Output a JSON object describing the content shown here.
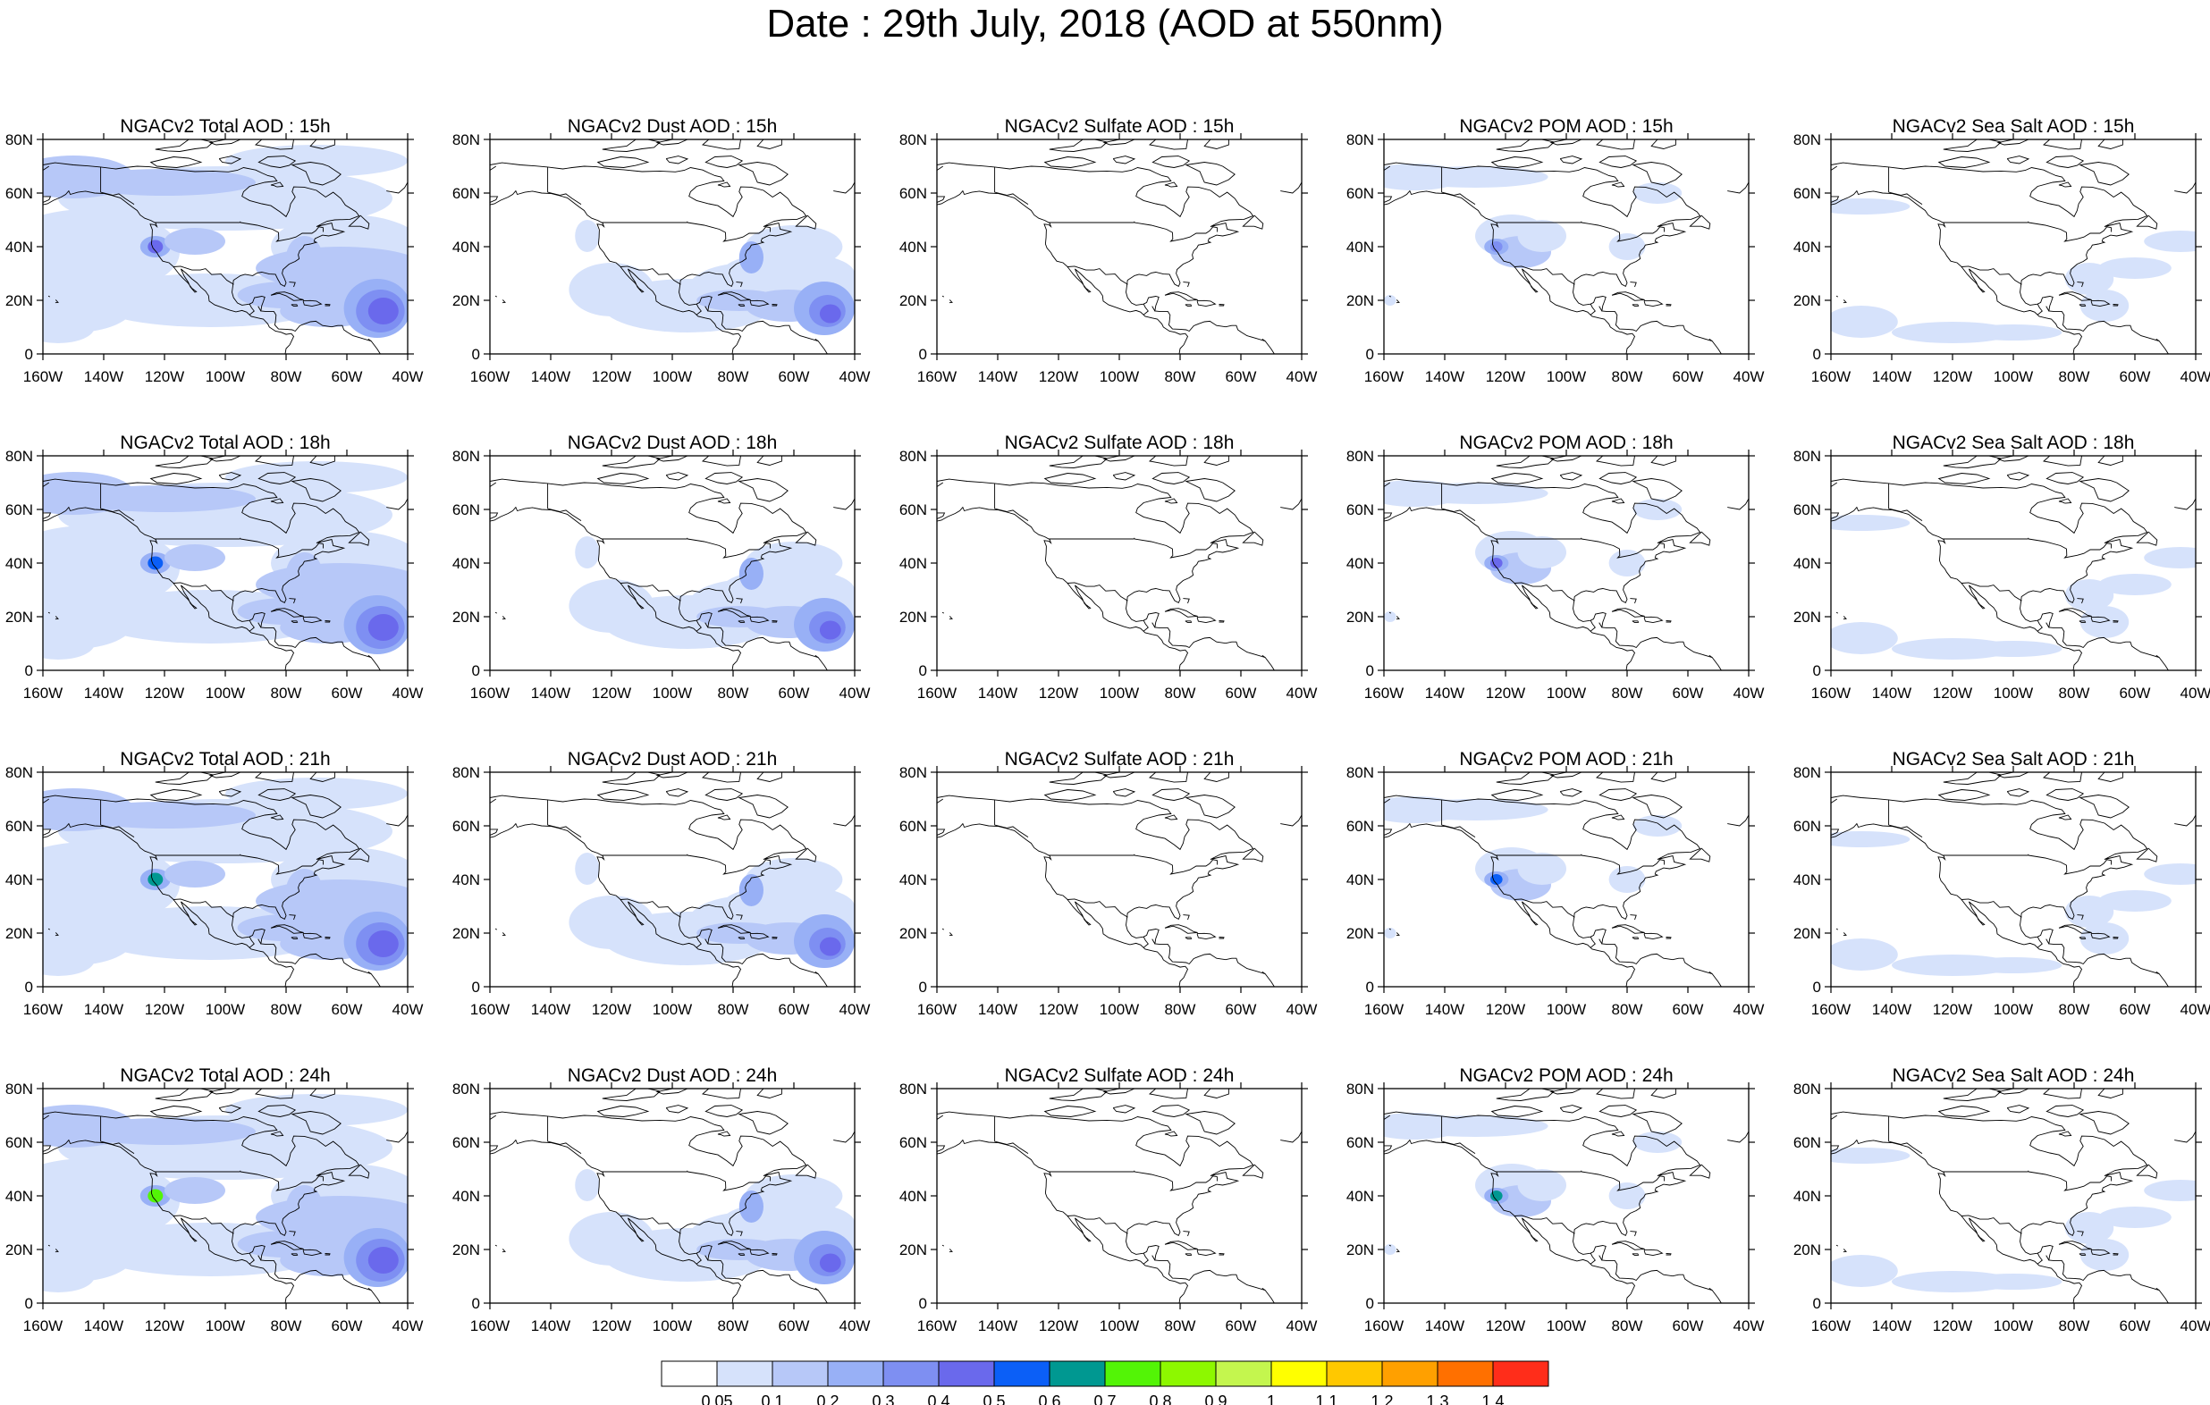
{
  "title": "Date : 29th July, 2018 (AOD at 550nm)",
  "lat_labels": [
    "80N",
    "60N",
    "40N",
    "20N",
    "0"
  ],
  "lon_labels": [
    "160W",
    "140W",
    "120W",
    "100W",
    "80W",
    "60W",
    "40W"
  ],
  "rows": [
    {
      "hour": "15h",
      "panels": [
        {
          "id": "total",
          "title": "NGACv2 Total AOD : 15h"
        },
        {
          "id": "dust",
          "title": "NGACv2 Dust AOD : 15h"
        },
        {
          "id": "sulfate",
          "title": "NGACv2 Sulfate AOD : 15h"
        },
        {
          "id": "pom",
          "title": "NGACv2 POM AOD : 15h"
        },
        {
          "id": "seasalt",
          "title": "NGACv2 Sea Salt AOD : 15h"
        }
      ]
    },
    {
      "hour": "18h",
      "panels": [
        {
          "id": "total",
          "title": "NGACv2 Total AOD : 18h"
        },
        {
          "id": "dust",
          "title": "NGACv2 Dust AOD : 18h"
        },
        {
          "id": "sulfate",
          "title": "NGACv2 Sulfate AOD : 18h"
        },
        {
          "id": "pom",
          "title": "NGACv2 POM AOD : 18h"
        },
        {
          "id": "seasalt",
          "title": "NGACv2 Sea Salt AOD : 18h"
        }
      ]
    },
    {
      "hour": "21h",
      "panels": [
        {
          "id": "total",
          "title": "NGACv2 Total AOD : 21h"
        },
        {
          "id": "dust",
          "title": "NGACv2 Dust AOD : 21h"
        },
        {
          "id": "sulfate",
          "title": "NGACv2 Sulfate AOD : 21h"
        },
        {
          "id": "pom",
          "title": "NGACv2 POM AOD : 21h"
        },
        {
          "id": "seasalt",
          "title": "NGACv2 Sea Salt AOD : 21h"
        }
      ]
    },
    {
      "hour": "24h",
      "panels": [
        {
          "id": "total",
          "title": "NGACv2 Total AOD : 24h"
        },
        {
          "id": "dust",
          "title": "NGACv2 Dust AOD : 24h"
        },
        {
          "id": "sulfate",
          "title": "NGACv2 Sulfate AOD : 24h"
        },
        {
          "id": "pom",
          "title": "NGACv2 POM AOD : 24h"
        },
        {
          "id": "seasalt",
          "title": "NGACv2 Sea Salt  AOD : 24h"
        }
      ]
    }
  ],
  "colorbar": {
    "labels": [
      "0.05",
      "0.1",
      "0.2",
      "0.3",
      "0.4",
      "0.5",
      "0.6",
      "0.7",
      "0.8",
      "0.9",
      "1",
      "1.1",
      "1.2",
      "1.3",
      "1.4"
    ],
    "colors": [
      "#ffffff",
      "#d6e2fb",
      "#b7c8f8",
      "#98b0f6",
      "#7e8ff2",
      "#6a69ec",
      "#0b5ff7",
      "#009891",
      "#53f406",
      "#8df800",
      "#c4f64e",
      "#ffff00",
      "#ffc800",
      "#ffa000",
      "#ff7000",
      "#ff2d1a"
    ]
  }
}
